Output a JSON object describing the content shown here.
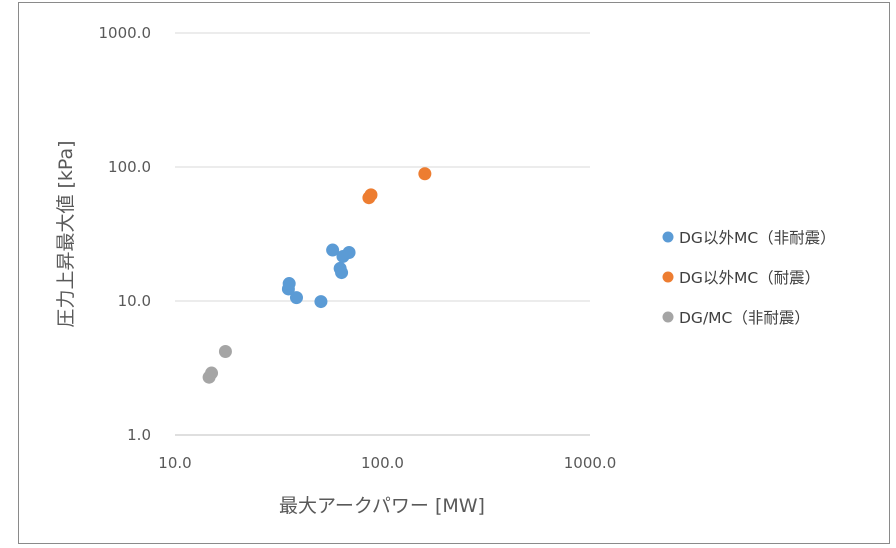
{
  "chart_data": {
    "type": "scatter",
    "xlabel": "最大アークパワー [MW]",
    "ylabel": "圧力上昇最大値 [kPa]",
    "x_scale": "log",
    "y_scale": "log",
    "xlim": [
      10,
      1000
    ],
    "ylim": [
      1,
      1000
    ],
    "x_ticks": [
      "10.0",
      "100.0",
      "1000.0"
    ],
    "y_ticks": [
      "1.0",
      "10.0",
      "100.0",
      "1000.0"
    ],
    "grid": "horizontal",
    "legend_position": "right",
    "series": [
      {
        "name": "DG以外MC（非耐震）",
        "color": "#5b9bd5",
        "points": [
          {
            "x": 35.2,
            "y": 12.3
          },
          {
            "x": 35.5,
            "y": 13.5
          },
          {
            "x": 38.5,
            "y": 10.6
          },
          {
            "x": 50.5,
            "y": 9.9
          },
          {
            "x": 57.5,
            "y": 24.0
          },
          {
            "x": 62.5,
            "y": 17.5
          },
          {
            "x": 63.5,
            "y": 16.3
          },
          {
            "x": 64.5,
            "y": 21.5
          },
          {
            "x": 69.0,
            "y": 23.0
          }
        ]
      },
      {
        "name": "DG以外MC（耐震）",
        "color": "#ed7d31",
        "points": [
          {
            "x": 86.0,
            "y": 59.0
          },
          {
            "x": 88.0,
            "y": 62.0
          },
          {
            "x": 160.0,
            "y": 89.0
          }
        ]
      },
      {
        "name": "DG/MC（非耐震）",
        "color": "#a5a5a5",
        "points": [
          {
            "x": 14.6,
            "y": 2.7
          },
          {
            "x": 15.0,
            "y": 2.9
          },
          {
            "x": 17.5,
            "y": 4.2
          }
        ]
      }
    ]
  }
}
